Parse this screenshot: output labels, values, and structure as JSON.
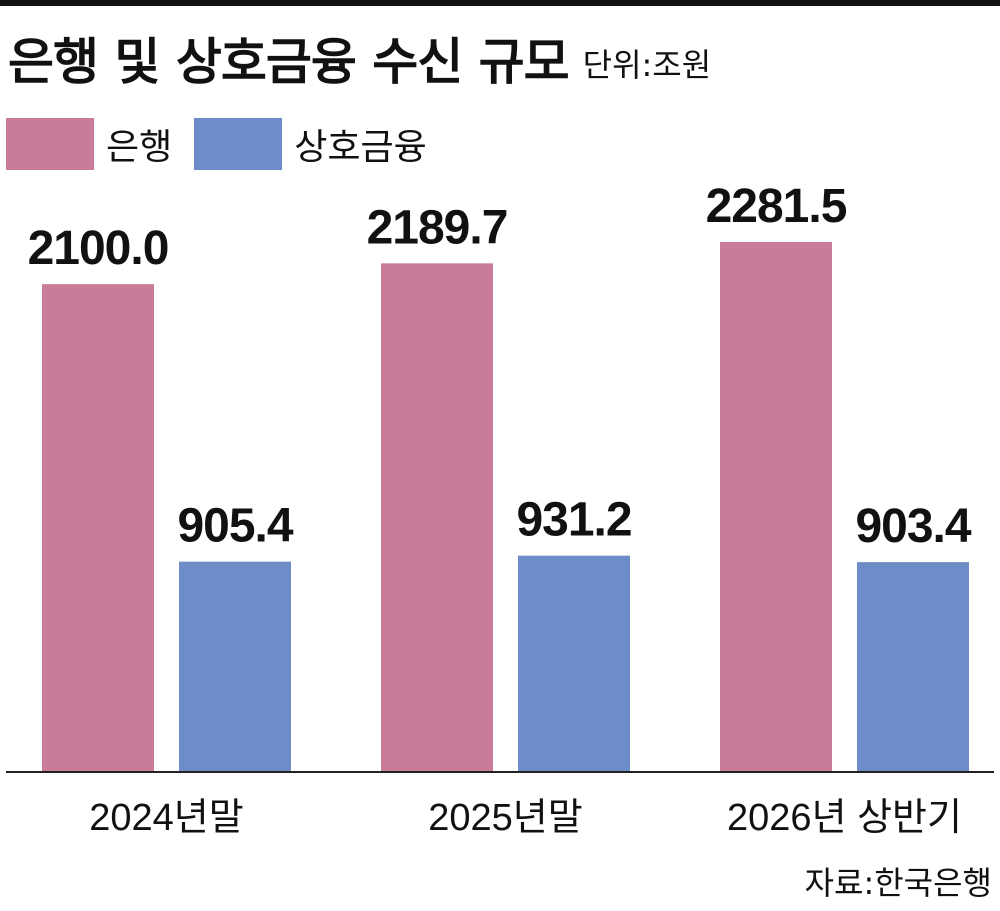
{
  "title": "은행 및 상호금융 수신 규모",
  "unit": "단위:조원",
  "source": "자료:한국은행",
  "colors": {
    "bank": "#c97b99",
    "coop": "#6e8dc8",
    "axis": "#222222"
  },
  "chart_data": {
    "type": "bar",
    "categories": [
      "2024년말",
      "2025년말",
      "2026년 상반기"
    ],
    "series": [
      {
        "name": "은행",
        "values": [
          2100.0,
          2189.7,
          2281.5
        ],
        "labels": [
          "2100.0",
          "2189.7",
          "2281.5"
        ]
      },
      {
        "name": "상호금융",
        "values": [
          905.4,
          931.2,
          903.4
        ],
        "labels": [
          "905.4",
          "931.2",
          "903.4"
        ]
      }
    ],
    "ylim": [
      0,
      2281.5
    ],
    "grid": false,
    "legend_position": "top-left"
  }
}
